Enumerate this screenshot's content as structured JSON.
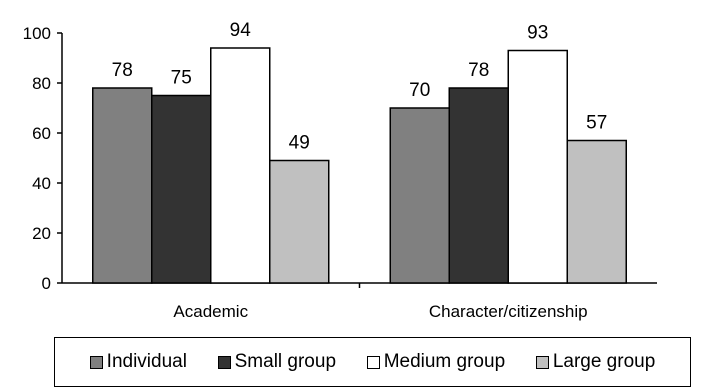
{
  "chart_data": {
    "type": "bar",
    "categories": [
      "Academic",
      "Character/citizenship"
    ],
    "series": [
      {
        "name": "Individual",
        "values": [
          78,
          70
        ],
        "color": "#808080"
      },
      {
        "name": "Small group",
        "values": [
          75,
          78
        ],
        "color": "#333333"
      },
      {
        "name": "Medium group",
        "values": [
          94,
          93
        ],
        "color": "#ffffff"
      },
      {
        "name": "Large group",
        "values": [
          49,
          57
        ],
        "color": "#c0c0c0"
      }
    ],
    "ylim": [
      0,
      100
    ],
    "yticks": [
      "0",
      "20",
      "40",
      "60",
      "80",
      "100"
    ],
    "grid": false,
    "legend_position": "bottom",
    "data_labels": true
  }
}
